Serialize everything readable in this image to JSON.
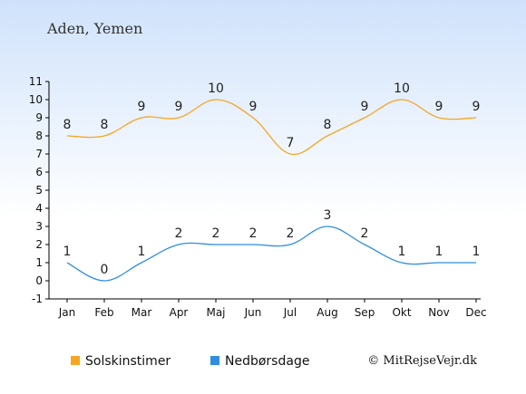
{
  "chart_data": {
    "type": "line",
    "title": "Aden, Yemen",
    "categories": [
      "Jan",
      "Feb",
      "Mar",
      "Apr",
      "Maj",
      "Jun",
      "Jul",
      "Aug",
      "Sep",
      "Okt",
      "Nov",
      "Dec"
    ],
    "ylim": [
      -1,
      11
    ],
    "yticks": [
      -1,
      0,
      1,
      2,
      3,
      4,
      5,
      6,
      7,
      8,
      9,
      10,
      11
    ],
    "grid": false,
    "legend_placement": "bottom",
    "series": [
      {
        "name": "Solskinstimer",
        "values": [
          8,
          8,
          9,
          9,
          10,
          9,
          7,
          8,
          9,
          10,
          9,
          9
        ],
        "color": "#f5a623"
      },
      {
        "name": "Nedbørsdage",
        "values": [
          1,
          0,
          1,
          2,
          2,
          2,
          2,
          3,
          2,
          1,
          1,
          1
        ],
        "color": "#2f8ee0"
      }
    ],
    "credit": "© MitRejseVejr.dk"
  }
}
